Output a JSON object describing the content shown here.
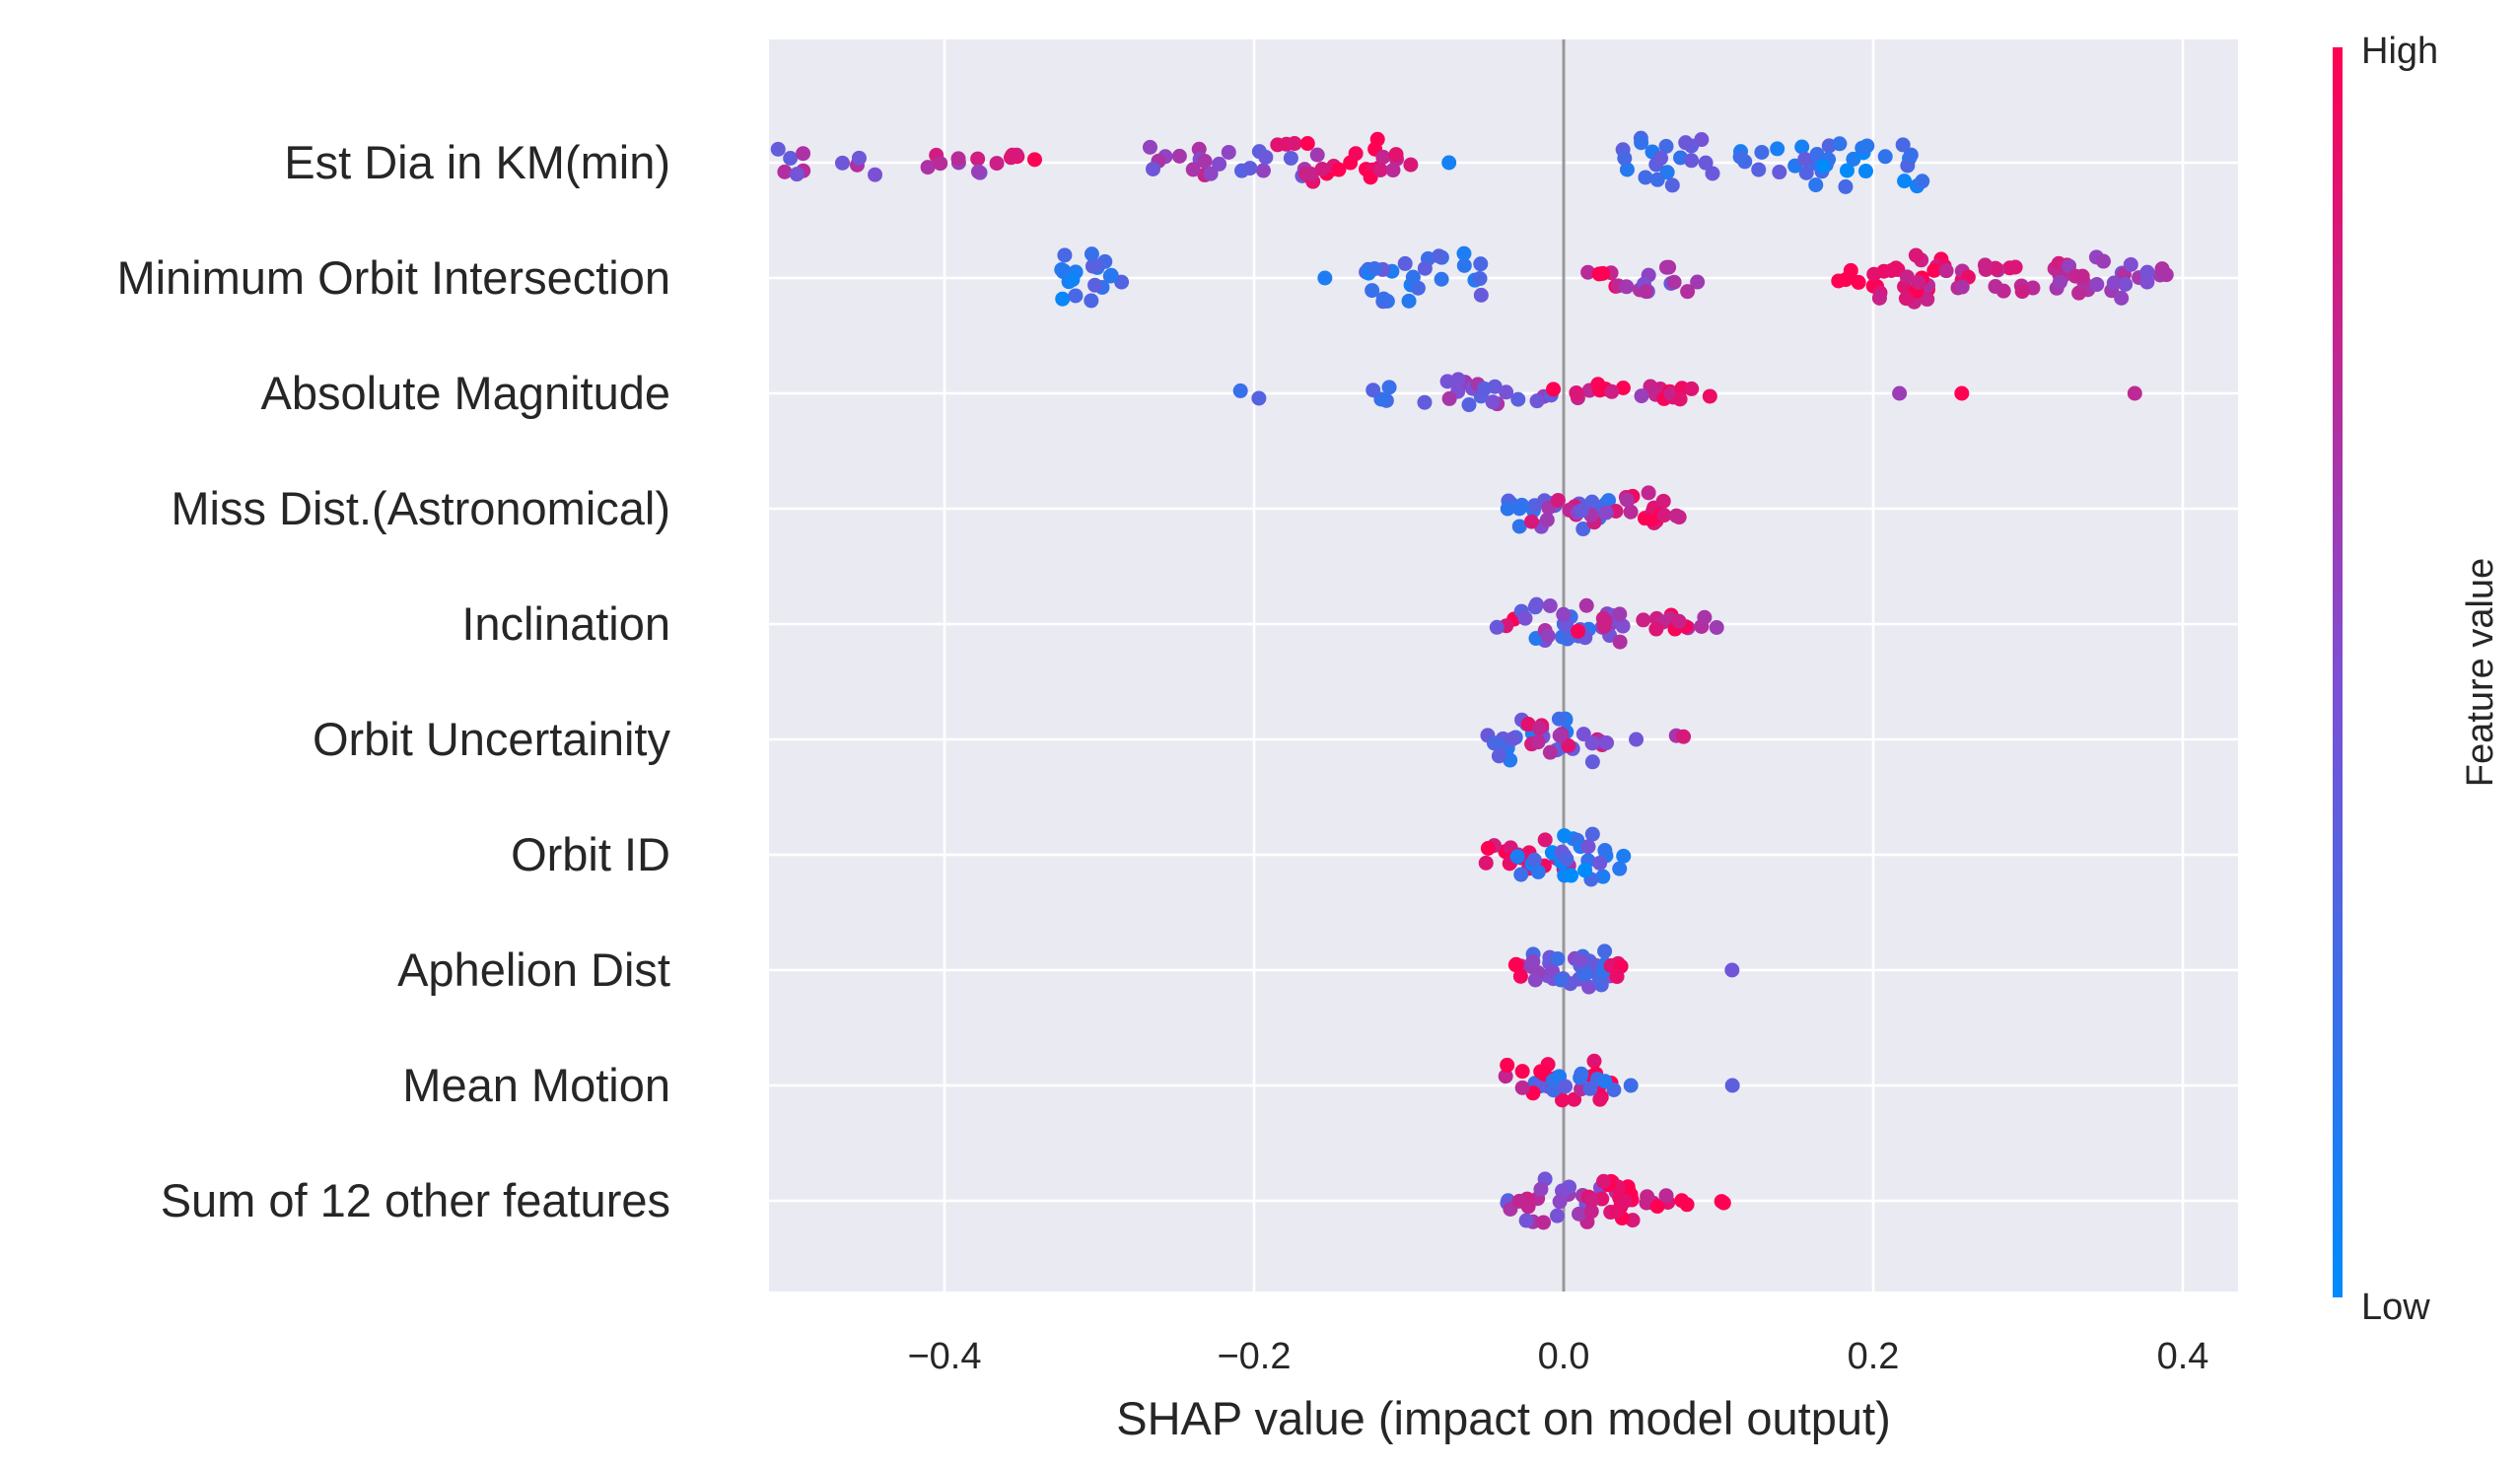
{
  "chart_data": {
    "type": "scatter",
    "subtype": "shap-beeswarm",
    "title": "",
    "xlabel": "SHAP value (impact on model output)",
    "ylabel": "",
    "xlim": [
      -0.52,
      0.42
    ],
    "xticks": [
      -0.4,
      -0.2,
      0.0,
      0.2,
      0.4
    ],
    "xtick_labels": [
      "−0.4",
      "−0.2",
      "0.0",
      "0.2",
      "0.4"
    ],
    "grid": true,
    "zero_line": true,
    "colorbar": {
      "title": "Feature value",
      "high_label": "High",
      "low_label": "Low",
      "low_color": "#008bfb",
      "mid_color": "#7e4fd4",
      "high_color": "#ff0052"
    },
    "features": [
      "Est Dia in KM(min)",
      "Minimum Orbit Intersection",
      "Absolute Magnitude",
      "Miss Dist.(Astronomical)",
      "Inclination",
      "Orbit Uncertainity",
      "Orbit ID",
      "Aphelion Dist",
      "Mean Motion",
      "Sum of 12 other features"
    ],
    "clusters": [
      {
        "feature": 0,
        "points": [
          [
            -0.475,
            0.55,
            10,
            0.07
          ],
          [
            -0.395,
            0.65,
            8,
            0.04
          ],
          [
            -0.355,
            0.95,
            6,
            0.03
          ],
          [
            -0.24,
            0.6,
            12,
            0.06
          ],
          [
            -0.19,
            0.5,
            10,
            0.08
          ],
          [
            -0.15,
            0.95,
            20,
            0.07
          ],
          [
            -0.12,
            0.85,
            6,
            0.05
          ],
          [
            -0.078,
            0.2,
            1,
            0.01
          ],
          [
            0.068,
            0.3,
            20,
            0.06
          ],
          [
            0.142,
            0.25,
            14,
            0.06
          ],
          [
            0.198,
            0.15,
            22,
            0.08
          ]
        ]
      },
      {
        "feature": 1,
        "points": [
          [
            -0.31,
            0.2,
            20,
            0.05
          ],
          [
            -0.15,
            0.2,
            1,
            0.01
          ],
          [
            -0.09,
            0.25,
            26,
            0.08
          ],
          [
            0.025,
            0.9,
            6,
            0.04
          ],
          [
            0.065,
            0.55,
            12,
            0.05
          ],
          [
            0.19,
            0.95,
            6,
            0.03
          ],
          [
            0.23,
            0.9,
            26,
            0.06
          ],
          [
            0.27,
            0.85,
            10,
            0.04
          ],
          [
            0.31,
            0.8,
            12,
            0.04
          ],
          [
            0.345,
            0.6,
            18,
            0.05
          ],
          [
            0.38,
            0.55,
            6,
            0.03
          ]
        ]
      },
      {
        "feature": 2,
        "points": [
          [
            -0.2,
            0.2,
            2,
            0.02
          ],
          [
            -0.11,
            0.25,
            4,
            0.03
          ],
          [
            -0.06,
            0.5,
            12,
            0.06
          ],
          [
            -0.025,
            0.5,
            8,
            0.06
          ],
          [
            0.007,
            0.9,
            3,
            0.02
          ],
          [
            0.032,
            0.95,
            10,
            0.08
          ],
          [
            0.055,
            0.6,
            2,
            0.01
          ],
          [
            0.08,
            0.9,
            6,
            0.04
          ],
          [
            0.22,
            0.55,
            1,
            0.01
          ],
          [
            0.255,
            0.95,
            1,
            0.01
          ],
          [
            0.372,
            0.75,
            1,
            0.01
          ]
        ]
      },
      {
        "feature": 3,
        "points": [
          [
            -0.02,
            0.25,
            6,
            0.03
          ],
          [
            -0.005,
            0.35,
            16,
            0.07
          ],
          [
            0.008,
            0.7,
            10,
            0.06
          ],
          [
            0.02,
            0.5,
            4,
            0.02
          ],
          [
            0.05,
            0.85,
            12,
            0.02
          ],
          [
            0.065,
            0.9,
            6,
            0.02
          ]
        ]
      },
      {
        "feature": 4,
        "points": [
          [
            -0.035,
            0.9,
            2,
            0.01
          ],
          [
            -0.01,
            0.3,
            16,
            0.07
          ],
          [
            0.005,
            0.55,
            16,
            0.07
          ],
          [
            0.018,
            0.85,
            4,
            0.02
          ],
          [
            0.06,
            0.9,
            6,
            0.02
          ],
          [
            0.09,
            0.7,
            4,
            0.02
          ],
          [
            0.075,
            0.9,
            3,
            0.01
          ]
        ]
      },
      {
        "feature": 5,
        "points": [
          [
            -0.04,
            0.3,
            4,
            0.02
          ],
          [
            -0.01,
            0.3,
            18,
            0.07
          ],
          [
            0.006,
            0.75,
            12,
            0.06
          ],
          [
            0.02,
            0.55,
            4,
            0.02
          ],
          [
            0.045,
            0.6,
            1,
            0.01
          ],
          [
            0.075,
            0.75,
            2,
            0.01
          ]
        ]
      },
      {
        "feature": 6,
        "points": [
          [
            -0.038,
            0.95,
            6,
            0.03
          ],
          [
            -0.015,
            0.85,
            12,
            0.04
          ],
          [
            0.005,
            0.15,
            22,
            0.07
          ],
          [
            0.012,
            0.3,
            6,
            0.05
          ]
        ]
      },
      {
        "feature": 7,
        "points": [
          [
            -0.03,
            0.9,
            4,
            0.02
          ],
          [
            -0.008,
            0.55,
            8,
            0.04
          ],
          [
            0.004,
            0.4,
            20,
            0.06
          ],
          [
            0.02,
            0.35,
            8,
            0.02
          ],
          [
            0.035,
            0.85,
            4,
            0.01
          ],
          [
            0.11,
            0.55,
            1,
            0.01
          ]
        ]
      },
      {
        "feature": 8,
        "points": [
          [
            -0.012,
            0.35,
            6,
            0.02
          ],
          [
            -0.003,
            0.9,
            22,
            0.07
          ],
          [
            0.003,
            0.2,
            8,
            0.04
          ],
          [
            0.03,
            0.25,
            2,
            0.01
          ],
          [
            0.045,
            0.25,
            1,
            0.01
          ],
          [
            0.107,
            0.2,
            1,
            0.01
          ]
        ]
      },
      {
        "feature": 9,
        "points": [
          [
            -0.04,
            0.3,
            4,
            0.02
          ],
          [
            -0.005,
            0.6,
            18,
            0.07
          ],
          [
            0.006,
            0.85,
            10,
            0.07
          ],
          [
            0.035,
            0.95,
            16,
            0.02
          ],
          [
            0.06,
            0.9,
            6,
            0.02
          ],
          [
            0.075,
            0.95,
            2,
            0.01
          ],
          [
            0.105,
            0.95,
            2,
            0.01
          ]
        ]
      }
    ]
  }
}
